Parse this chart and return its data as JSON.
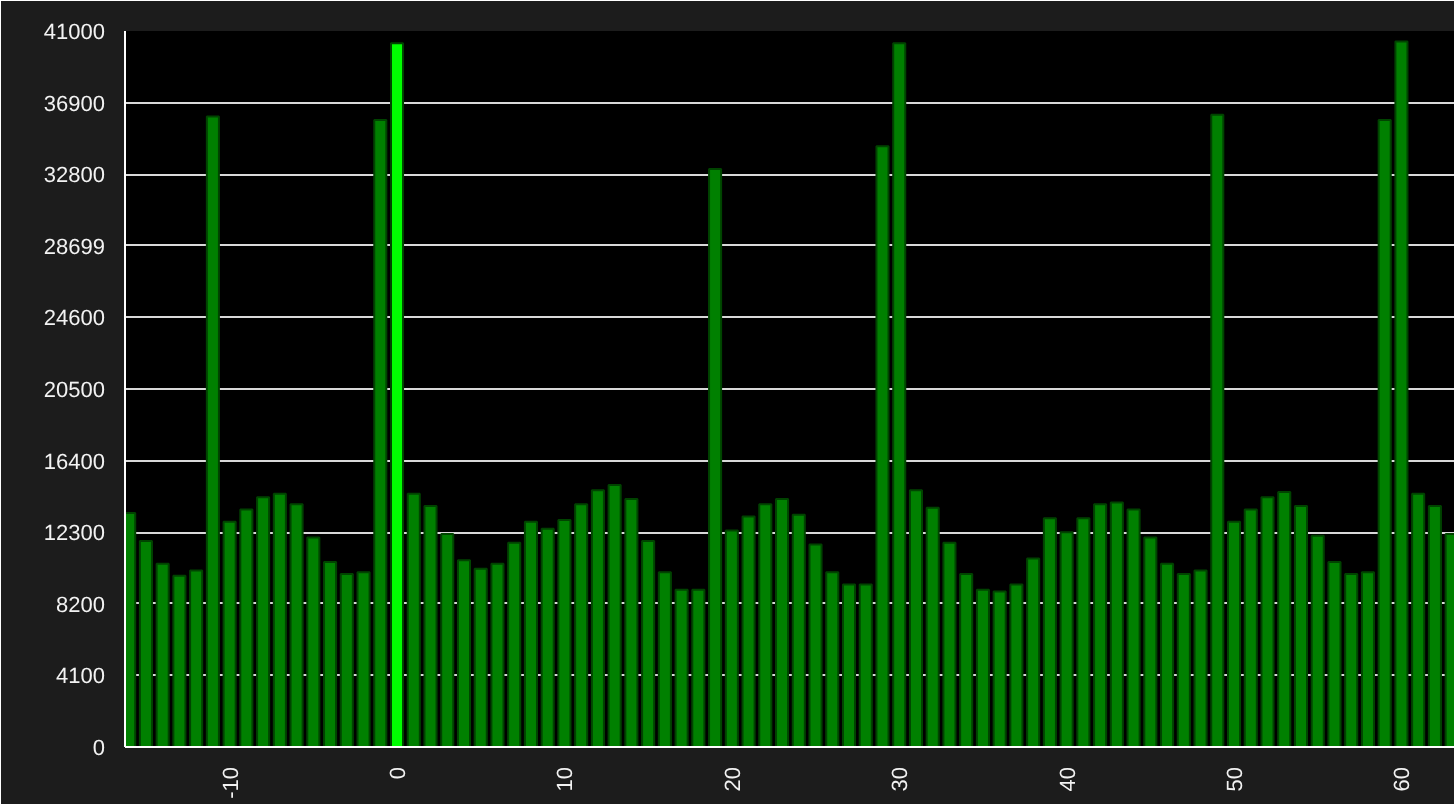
{
  "chart_data": {
    "type": "bar",
    "x": [
      -16,
      -15,
      -14,
      -13,
      -12,
      -11,
      -10,
      -9,
      -8,
      -7,
      -6,
      -5,
      -4,
      -3,
      -2,
      -1,
      0,
      1,
      2,
      3,
      4,
      5,
      6,
      7,
      8,
      9,
      10,
      11,
      12,
      13,
      14,
      15,
      16,
      17,
      18,
      19,
      20,
      21,
      22,
      23,
      24,
      25,
      26,
      27,
      28,
      29,
      30,
      31,
      32,
      33,
      34,
      35,
      36,
      37,
      38,
      39,
      40,
      41,
      42,
      43,
      44,
      45,
      46,
      47,
      48,
      49,
      50,
      51,
      52,
      53,
      54,
      55,
      56,
      57,
      58,
      59,
      60,
      61,
      62,
      63
    ],
    "values": [
      13400,
      11800,
      10500,
      9800,
      10100,
      36100,
      12900,
      13600,
      14300,
      14500,
      13900,
      12000,
      10600,
      9900,
      10000,
      35900,
      40300,
      14500,
      13800,
      12200,
      10700,
      10200,
      10500,
      11700,
      12900,
      12500,
      13000,
      13900,
      14700,
      15000,
      14200,
      11800,
      10000,
      9000,
      9000,
      33100,
      12400,
      13200,
      13900,
      14200,
      13300,
      11600,
      10000,
      9300,
      9300,
      34400,
      40300,
      14700,
      13700,
      11700,
      9900,
      9000,
      8900,
      9300,
      10800,
      13100,
      12300,
      13100,
      13900,
      14000,
      13600,
      12000,
      10500,
      9900,
      10100,
      36200,
      12900,
      13600,
      14300,
      14600,
      13800,
      12100,
      10600,
      9900,
      10000,
      35900,
      40400,
      14500,
      13800,
      12200
    ],
    "colors": [
      "#008000",
      "#008000",
      "#008000",
      "#008000",
      "#008000",
      "#008000",
      "#008000",
      "#008000",
      "#008000",
      "#008000",
      "#008000",
      "#008000",
      "#008000",
      "#008000",
      "#008000",
      "#008000",
      "#00ff00",
      "#008000",
      "#008000",
      "#008000",
      "#008000",
      "#008000",
      "#008000",
      "#008000",
      "#008000",
      "#008000",
      "#008000",
      "#008000",
      "#008000",
      "#008000",
      "#008000",
      "#008000",
      "#008000",
      "#008000",
      "#008000",
      "#008000",
      "#008000",
      "#008000",
      "#008000",
      "#008000",
      "#008000",
      "#008000",
      "#008000",
      "#008000",
      "#008000",
      "#008000",
      "#008000",
      "#008000",
      "#008000",
      "#008000",
      "#008000",
      "#008000",
      "#008000",
      "#008000",
      "#008000",
      "#008000",
      "#008000",
      "#008000",
      "#008000",
      "#008000",
      "#008000",
      "#008000",
      "#008000",
      "#008000",
      "#008000",
      "#008000",
      "#008000",
      "#008000",
      "#008000",
      "#008000",
      "#008000",
      "#008000",
      "#008000",
      "#008000",
      "#008000",
      "#008000",
      "#008000",
      "#008000",
      "#008000",
      "#008000"
    ],
    "xlim": [
      -16.25,
      63.2
    ],
    "ylim": [
      0,
      41000
    ],
    "xticks": [
      -10,
      0,
      10,
      20,
      30,
      40,
      50,
      60
    ],
    "yticks": [
      0,
      4100,
      8200,
      12300,
      16400,
      20500,
      24600,
      28699,
      32800,
      36900,
      41000
    ],
    "grid": "y"
  }
}
